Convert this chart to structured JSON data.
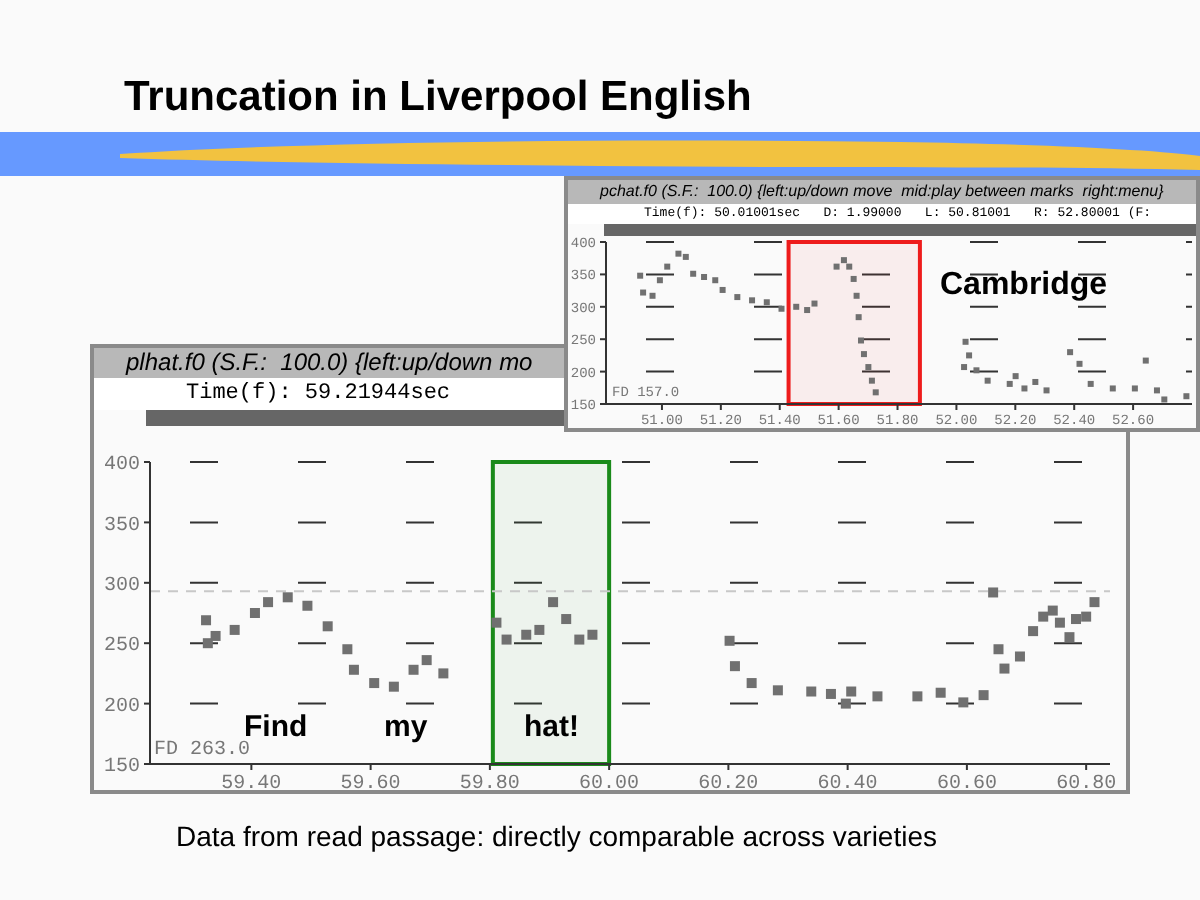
{
  "chart_data": [
    {
      "type": "scatter",
      "title": "Truncation in Liverpool English",
      "annotations": [
        "pchat.f0 (S.F.:  100.0) {left:up/down move  mid:play between marks  right:menu}",
        "Time(f): 50.01001sec   D: 1.99000   L: 50.81001   R: 52.80001 (F:",
        "FD 157.0",
        "Cambridge"
      ],
      "x": [
        50.926,
        50.936,
        50.968,
        50.993,
        51.018,
        51.056,
        51.081,
        51.106,
        51.143,
        51.181,
        51.206,
        51.256,
        51.306,
        51.356,
        51.406,
        51.456,
        51.493,
        51.518,
        51.593,
        51.618,
        51.636,
        51.651,
        51.661,
        51.668,
        51.676,
        51.686,
        51.701,
        51.713,
        51.726,
        52.026,
        52.031,
        52.043,
        52.068,
        52.106,
        52.181,
        52.201,
        52.231,
        52.268,
        52.306,
        52.386,
        52.418,
        52.456,
        52.531,
        52.606,
        52.643,
        52.681,
        52.706,
        52.781
      ],
      "series": [
        {
          "color": "#707070",
          "values": [
            348,
            322,
            317,
            341,
            362,
            382,
            377,
            351,
            346,
            341,
            326,
            315,
            310,
            307,
            297,
            300,
            295,
            305,
            362,
            372,
            362,
            343,
            317,
            284,
            248,
            227,
            207,
            186,
            168,
            207,
            246,
            225,
            202,
            186,
            181,
            193,
            174,
            184,
            171,
            230,
            212,
            181,
            174,
            174,
            217,
            171,
            157,
            162
          ]
        }
      ],
      "xlim": [
        50.81,
        52.8
      ],
      "xticks": [
        {
          "value": 51.0,
          "label": "51.00"
        },
        {
          "value": 51.2,
          "label": "51.20"
        },
        {
          "value": 51.4,
          "label": "51.40"
        },
        {
          "value": 51.6,
          "label": "51.60"
        },
        {
          "value": 51.8,
          "label": "51.80"
        },
        {
          "value": 52.0,
          "label": "52.00"
        },
        {
          "value": 52.2,
          "label": "52.20"
        },
        {
          "value": 52.4,
          "label": "52.40"
        },
        {
          "value": 52.6,
          "label": "52.60"
        }
      ],
      "ylim": [
        150,
        400
      ],
      "yticks": [
        150,
        200,
        250,
        300,
        350,
        400
      ],
      "grid": "y",
      "marker": "square",
      "bands": [
        {
          "axis": "x",
          "from": 51.43,
          "to": 51.876,
          "color": "#ee1c1c"
        }
      ]
    },
    {
      "type": "scatter",
      "annotations": [
        "plhat.f0 (S.F.:  100.0) {left:up/down mo",
        "Time(f): 59.21944sec",
        "FD 263.0",
        "Find",
        "my",
        "hat!",
        "Data from read passage: directly comparable across varieties"
      ],
      "x": [
        59.324,
        59.327,
        59.34,
        59.372,
        59.406,
        59.428,
        59.461,
        59.494,
        59.528,
        59.561,
        59.572,
        59.606,
        59.639,
        59.672,
        59.694,
        59.722,
        59.811,
        59.828,
        59.861,
        59.883,
        59.906,
        59.928,
        59.95,
        59.972,
        60.202,
        60.211,
        60.239,
        60.283,
        60.339,
        60.372,
        60.397,
        60.406,
        60.45,
        60.517,
        60.556,
        60.594,
        60.628,
        60.644,
        60.653,
        60.663,
        60.689,
        60.711,
        60.728,
        60.744,
        60.756,
        60.772,
        60.783,
        60.8,
        60.814
      ],
      "series": [
        {
          "color": "#707070",
          "values": [
            269,
            250,
            256,
            261,
            275,
            284,
            288,
            281,
            264,
            245,
            228,
            217,
            214,
            228,
            236,
            225,
            267,
            253,
            257,
            261,
            284,
            270,
            253,
            257,
            252,
            231,
            217,
            211,
            210,
            208,
            200,
            210,
            206,
            206,
            209,
            201,
            207,
            292,
            245,
            229,
            239,
            260,
            272,
            277,
            267,
            255,
            270,
            272,
            284
          ]
        }
      ],
      "xlim": [
        59.23,
        60.84
      ],
      "xticks": [
        {
          "value": 59.4,
          "label": "59.40"
        },
        {
          "value": 59.6,
          "label": "59.60"
        },
        {
          "value": 59.8,
          "label": "59.80"
        },
        {
          "value": 60.0,
          "label": "60.00"
        },
        {
          "value": 60.2,
          "label": "60.20"
        },
        {
          "value": 60.4,
          "label": "60.40"
        },
        {
          "value": 60.6,
          "label": "60.60"
        },
        {
          "value": 60.8,
          "label": "60.80"
        }
      ],
      "ylim": [
        150,
        400
      ],
      "yticks": [
        150,
        200,
        250,
        300,
        350,
        400
      ],
      "grid": "y",
      "marker": "square",
      "ref_lines": [
        {
          "axis": "y",
          "value": 293,
          "color": "#c8c8c8",
          "line_style": "dashed"
        }
      ],
      "bands": [
        {
          "axis": "x",
          "from": 59.805,
          "to": 60.0,
          "color": "#1a8a1a"
        }
      ]
    }
  ]
}
